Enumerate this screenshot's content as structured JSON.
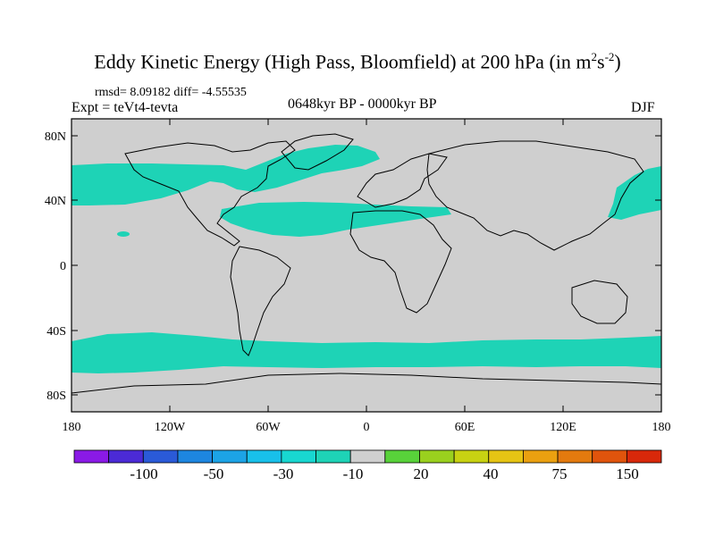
{
  "title": {
    "main": "Eddy Kinetic Energy (High Pass, Bloomfield) at 200 hPa (in m",
    "sup1": "2",
    "mid": "s",
    "sup2": "-2",
    "end": ")"
  },
  "stats": "rmsd= 8.09182 diff= -4.55535",
  "experiment": "Expt = teVt4-tevta",
  "period": "0648kyr BP - 0000kyr BP",
  "season": "DJF",
  "map": {
    "lat_ticks": [
      "80N",
      "40N",
      "0",
      "40S",
      "80S"
    ],
    "lon_ticks": [
      "180",
      "120W",
      "60W",
      "0",
      "60E",
      "120E",
      "180"
    ],
    "lat_range": [
      -90,
      90
    ],
    "lon_range": [
      -180,
      180
    ],
    "land_background": "#cfcfcf",
    "anomaly_fill": "#1ed3b6",
    "anomaly_region_value": "-10 to -30 band (storm tracks)"
  },
  "colorbar": {
    "colors": [
      "#8a1ae6",
      "#4b2ad6",
      "#2a5ad8",
      "#1d86e0",
      "#1ca3e6",
      "#18c0ea",
      "#18d7d0",
      "#1ed3b6",
      "#cfcfcf",
      "#58d23a",
      "#9ad01e",
      "#c8d212",
      "#e6c414",
      "#eaa010",
      "#e37a0e",
      "#e0540c",
      "#d8280a"
    ],
    "labels": [
      "-100",
      "-50",
      "-30",
      "-10",
      "20",
      "40",
      "75",
      "150"
    ]
  }
}
